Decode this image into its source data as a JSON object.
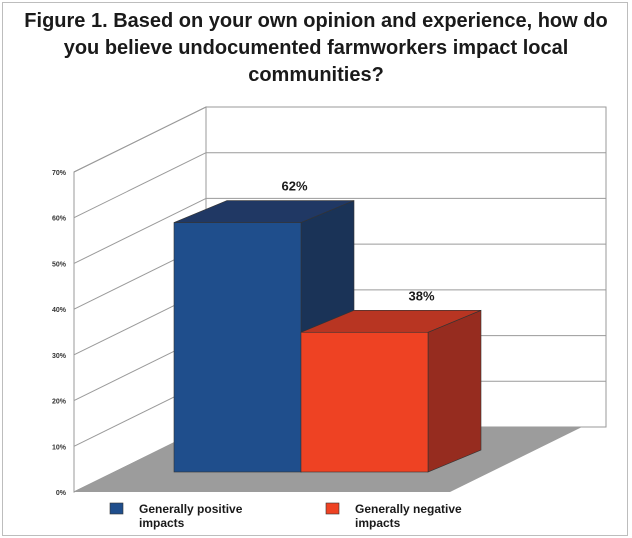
{
  "chart_data": {
    "type": "bar",
    "title_lines": [
      "Figure 1. Based on your own opinion and experience, how do",
      "you believe undocumented farmworkers impact local",
      "communities?"
    ],
    "categories": [
      "Generally positive impacts",
      "Generally negative impacts"
    ],
    "values": [
      62,
      38
    ],
    "data_labels": [
      "62%",
      "38%"
    ],
    "legend": [
      {
        "lines": [
          "Generally positive",
          "impacts"
        ],
        "color": "#1f4e8c"
      },
      {
        "lines": [
          "Generally negative",
          "impacts"
        ],
        "color": "#ee4223"
      }
    ],
    "yticks": [
      "0%",
      "10%",
      "20%",
      "30%",
      "40%",
      "50%",
      "60%",
      "70%"
    ],
    "ylim": [
      0,
      70
    ],
    "grid": true,
    "legend_position": "bottom",
    "colors": {
      "positive_front": "#1f4e8c",
      "positive_top": "#203864",
      "positive_side": "#1a3357",
      "negative_front": "#ee4223",
      "negative_top": "#b83522",
      "negative_side": "#962c1f",
      "floor": "#9c9c9c",
      "grid": "#9a9a9a"
    }
  }
}
